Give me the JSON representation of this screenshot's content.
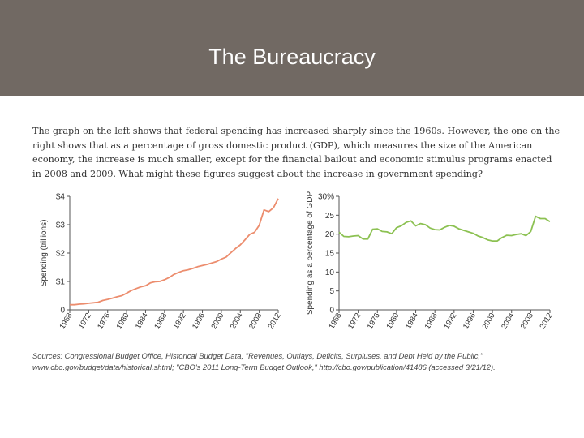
{
  "slide": {
    "title": "The Bureaucracy",
    "caption": "The graph on the left shows that federal spending has increased sharply since the 1960s. However, the one on the right shows that as a percentage of gross domestic product (GDP), which measures the size of the American economy, the increase is much smaller, except for the financial bailout and economic stimulus programs enacted in 2008 and 2009. What might these figures suggest about the increase in government spending?",
    "sources": "Sources: Congressional Budget Office, Historical Budget Data, \"Revenues, Outlays, Deficits, Surpluses, and Debt Held by the Public,\" www.cbo.gov/budget/data/historical.shtml; \"CBO's 2011 Long-Term Budget Outlook,\" http://cbo.gov/publication/41486 (accessed 3/21/12).",
    "colors": {
      "header": "#716963",
      "left_series": "#ec8d6e",
      "right_series": "#8cc152",
      "axis": "#555555"
    }
  },
  "chart_data": [
    {
      "type": "line",
      "title": "",
      "xlabel": "",
      "ylabel": "Spending (trillions)",
      "xlim": [
        1968,
        2012
      ],
      "ylim": [
        0,
        4
      ],
      "xticks": [
        "1968",
        "1972",
        "1976",
        "1980",
        "1984",
        "1988",
        "1992",
        "1996",
        "2000",
        "2004",
        "2008",
        "2012"
      ],
      "yticks": [
        "0",
        "$1",
        "$2",
        "$3",
        "$4"
      ],
      "grid": false,
      "series": [
        {
          "x": [
            1968,
            1969,
            1970,
            1971,
            1972,
            1973,
            1974,
            1975,
            1976,
            1977,
            1978,
            1979,
            1980,
            1981,
            1982,
            1983,
            1984,
            1985,
            1986,
            1987,
            1988,
            1989,
            1990,
            1991,
            1992,
            1993,
            1994,
            1995,
            1996,
            1997,
            1998,
            1999,
            2000,
            2001,
            2002,
            2003,
            2004,
            2005,
            2006,
            2007,
            2008,
            2009,
            2010,
            2011,
            2012
          ],
          "y": [
            0.18,
            0.18,
            0.2,
            0.21,
            0.23,
            0.25,
            0.27,
            0.33,
            0.37,
            0.41,
            0.46,
            0.5,
            0.59,
            0.68,
            0.75,
            0.81,
            0.85,
            0.95,
            0.99,
            1.0,
            1.06,
            1.14,
            1.25,
            1.32,
            1.38,
            1.41,
            1.46,
            1.52,
            1.56,
            1.6,
            1.65,
            1.7,
            1.79,
            1.86,
            2.01,
            2.16,
            2.29,
            2.47,
            2.66,
            2.73,
            2.98,
            3.52,
            3.46,
            3.6,
            3.92
          ]
        }
      ]
    },
    {
      "type": "line",
      "title": "",
      "xlabel": "",
      "ylabel": "Spending as a percentage of GDP",
      "xlim": [
        1968,
        2012
      ],
      "ylim": [
        0,
        30
      ],
      "xticks": [
        "1968",
        "1972",
        "1976",
        "1980",
        "1984",
        "1988",
        "1992",
        "1996",
        "2000",
        "2004",
        "2008",
        "2012"
      ],
      "yticks": [
        "0",
        "5",
        "10",
        "15",
        "20",
        "25",
        "30%"
      ],
      "grid": false,
      "series": [
        {
          "x": [
            1968,
            1969,
            1970,
            1971,
            1972,
            1973,
            1974,
            1975,
            1976,
            1977,
            1978,
            1979,
            1980,
            1981,
            1982,
            1983,
            1984,
            1985,
            1986,
            1987,
            1988,
            1989,
            1990,
            1991,
            1992,
            1993,
            1994,
            1995,
            1996,
            1997,
            1998,
            1999,
            2000,
            2001,
            2002,
            2003,
            2004,
            2005,
            2006,
            2007,
            2008,
            2009,
            2010,
            2011,
            2012
          ],
          "y": [
            20.5,
            19.4,
            19.3,
            19.5,
            19.6,
            18.7,
            18.7,
            21.3,
            21.4,
            20.7,
            20.6,
            20.1,
            21.7,
            22.2,
            23.1,
            23.5,
            22.2,
            22.8,
            22.5,
            21.6,
            21.2,
            21.1,
            21.8,
            22.3,
            22.1,
            21.4,
            21.0,
            20.6,
            20.2,
            19.5,
            19.1,
            18.5,
            18.2,
            18.2,
            19.1,
            19.7,
            19.6,
            19.9,
            20.1,
            19.6,
            20.7,
            24.7,
            24.1,
            24.1,
            23.3
          ]
        }
      ]
    }
  ]
}
